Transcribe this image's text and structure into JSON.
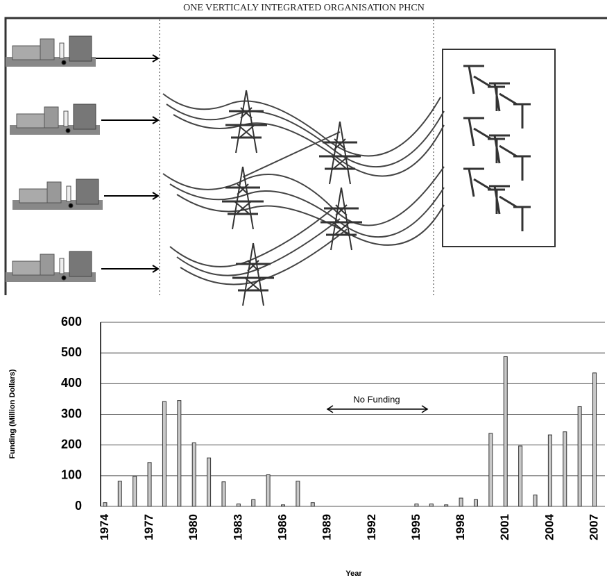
{
  "diagram": {
    "title": "ONE VERTICALY INTEGRATED ORGANISATION PHCN"
  },
  "chart_data": {
    "type": "bar",
    "categories": [
      "1974",
      null,
      null,
      "1977",
      null,
      null,
      "1980",
      null,
      null,
      "1983",
      null,
      null,
      "1986",
      null,
      null,
      "1989",
      null,
      null,
      "1992",
      null,
      null,
      "1995",
      null,
      null,
      "1998",
      null,
      null,
      "2001",
      null,
      null,
      "2004",
      null,
      null,
      "2007"
    ],
    "values": [
      12,
      82,
      98,
      143,
      342,
      345,
      207,
      158,
      80,
      8,
      22,
      103,
      5,
      82,
      12,
      0,
      0,
      0,
      0,
      0,
      0,
      8,
      8,
      5,
      27,
      22,
      238,
      488,
      197,
      37,
      233,
      243,
      325,
      435
    ],
    "color": "#c8c8c8",
    "ylim": [
      0,
      600
    ],
    "yticks": [
      0,
      100,
      200,
      300,
      400,
      500,
      600
    ],
    "grid": true,
    "xlabel": "Year",
    "ylabel": "Funding (Million Dollars)",
    "annotation": "No Funding"
  }
}
